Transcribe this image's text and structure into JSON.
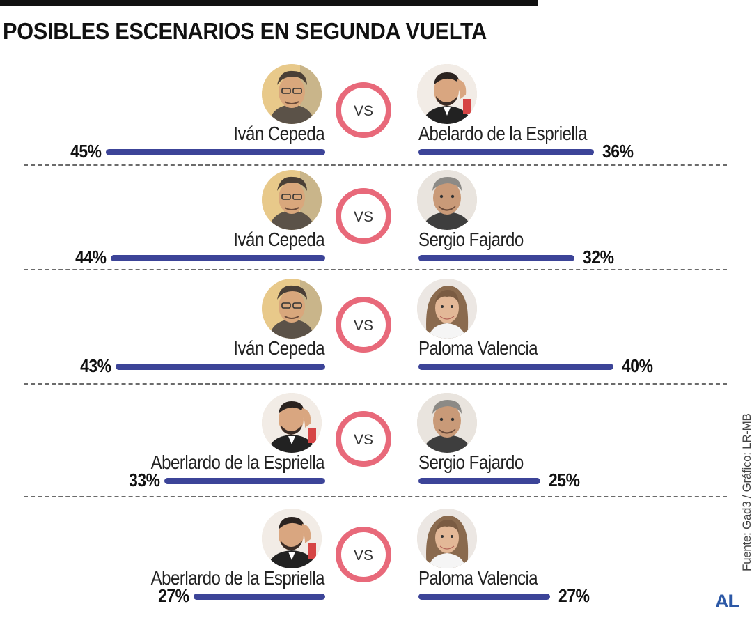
{
  "title": "POSIBLES ESCENARIOS EN SEGUNDA VUELTA",
  "vs_label": "VS",
  "source": "Fuente: Gad3 / Gráfico: LR-MB",
  "logo": "AL",
  "colors": {
    "bar": "#3c4498",
    "ring": "#e8697a",
    "divider": "#6b6b6b",
    "logo": "#2c58a6"
  },
  "chart_data": {
    "type": "bar",
    "unit": "%",
    "series": [
      {
        "name": "left",
        "values": [
          45,
          44,
          43,
          33,
          27
        ]
      },
      {
        "name": "right",
        "values": [
          36,
          32,
          40,
          25,
          27
        ]
      }
    ],
    "matchups": [
      {
        "left": {
          "name": "Iván Cepeda",
          "value": 45,
          "label": "45%",
          "avatar": "portrait-cepeda"
        },
        "right": {
          "name": "Abelardo de la Espriella",
          "value": 36,
          "label": "36%",
          "avatar": "portrait-espriella"
        }
      },
      {
        "left": {
          "name": "Iván Cepeda",
          "value": 44,
          "label": "44%",
          "avatar": "portrait-cepeda"
        },
        "right": {
          "name": "Sergio Fajardo",
          "value": 32,
          "label": "32%",
          "avatar": "portrait-fajardo"
        }
      },
      {
        "left": {
          "name": "Iván Cepeda",
          "value": 43,
          "label": "43%",
          "avatar": "portrait-cepeda"
        },
        "right": {
          "name": "Paloma Valencia",
          "value": 40,
          "label": "40%",
          "avatar": "portrait-valencia"
        }
      },
      {
        "left": {
          "name": "Aberlardo de la Espriella",
          "value": 33,
          "label": "33%",
          "avatar": "portrait-espriella"
        },
        "right": {
          "name": "Sergio Fajardo",
          "value": 25,
          "label": "25%",
          "avatar": "portrait-fajardo"
        }
      },
      {
        "left": {
          "name": "Aberlardo de la Espriella",
          "value": 27,
          "label": "27%",
          "avatar": "portrait-espriella"
        },
        "right": {
          "name": "Paloma Valencia",
          "value": 27,
          "label": "27%",
          "avatar": "portrait-valencia"
        }
      }
    ]
  }
}
